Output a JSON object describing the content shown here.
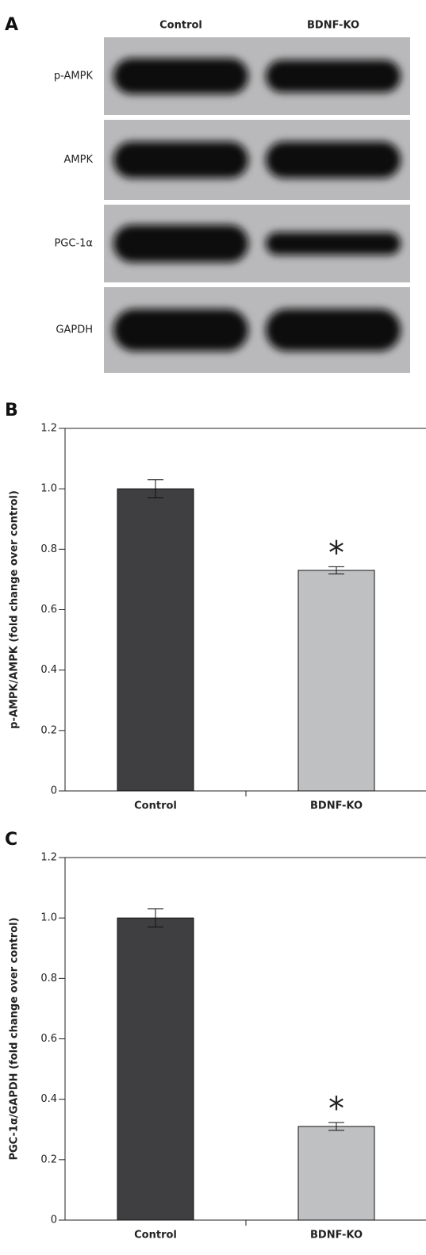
{
  "blot": {
    "label": "A",
    "lanes": [
      "Control",
      "BDNF-KO"
    ],
    "proteins": [
      "p-AMPK",
      "AMPK",
      "PGC-1α",
      "GAPDH"
    ]
  },
  "chart_data": [
    {
      "type": "bar",
      "label": "B",
      "ylabel": "p-AMPK/AMPK (fold change over control)",
      "categories": [
        "Control",
        "BDNF-KO"
      ],
      "values": [
        1,
        0.73
      ],
      "errors": [
        0.03,
        0.012
      ],
      "significance": [
        null,
        "*"
      ],
      "colors": [
        "#3f3f41",
        "#bfc0c2"
      ],
      "ylim": [
        0,
        1.2
      ],
      "yticks": [
        0,
        0.2,
        0.4,
        0.6,
        0.8,
        {
          "value": 1,
          "label": "1.0"
        },
        1.2
      ]
    },
    {
      "type": "bar",
      "label": "C",
      "ylabel": "PGC-1α/GAPDH (fold change over control)",
      "categories": [
        "Control",
        "BDNF-KO"
      ],
      "values": [
        1,
        0.31
      ],
      "errors": [
        0.03,
        0.013
      ],
      "significance": [
        null,
        "*"
      ],
      "colors": [
        "#3f3f41",
        "#bfc0c2"
      ],
      "ylim": [
        0,
        1.2
      ],
      "yticks": [
        0,
        0.2,
        0.4,
        0.6,
        0.8,
        {
          "value": 1,
          "label": "1.0"
        },
        1.2
      ]
    }
  ]
}
